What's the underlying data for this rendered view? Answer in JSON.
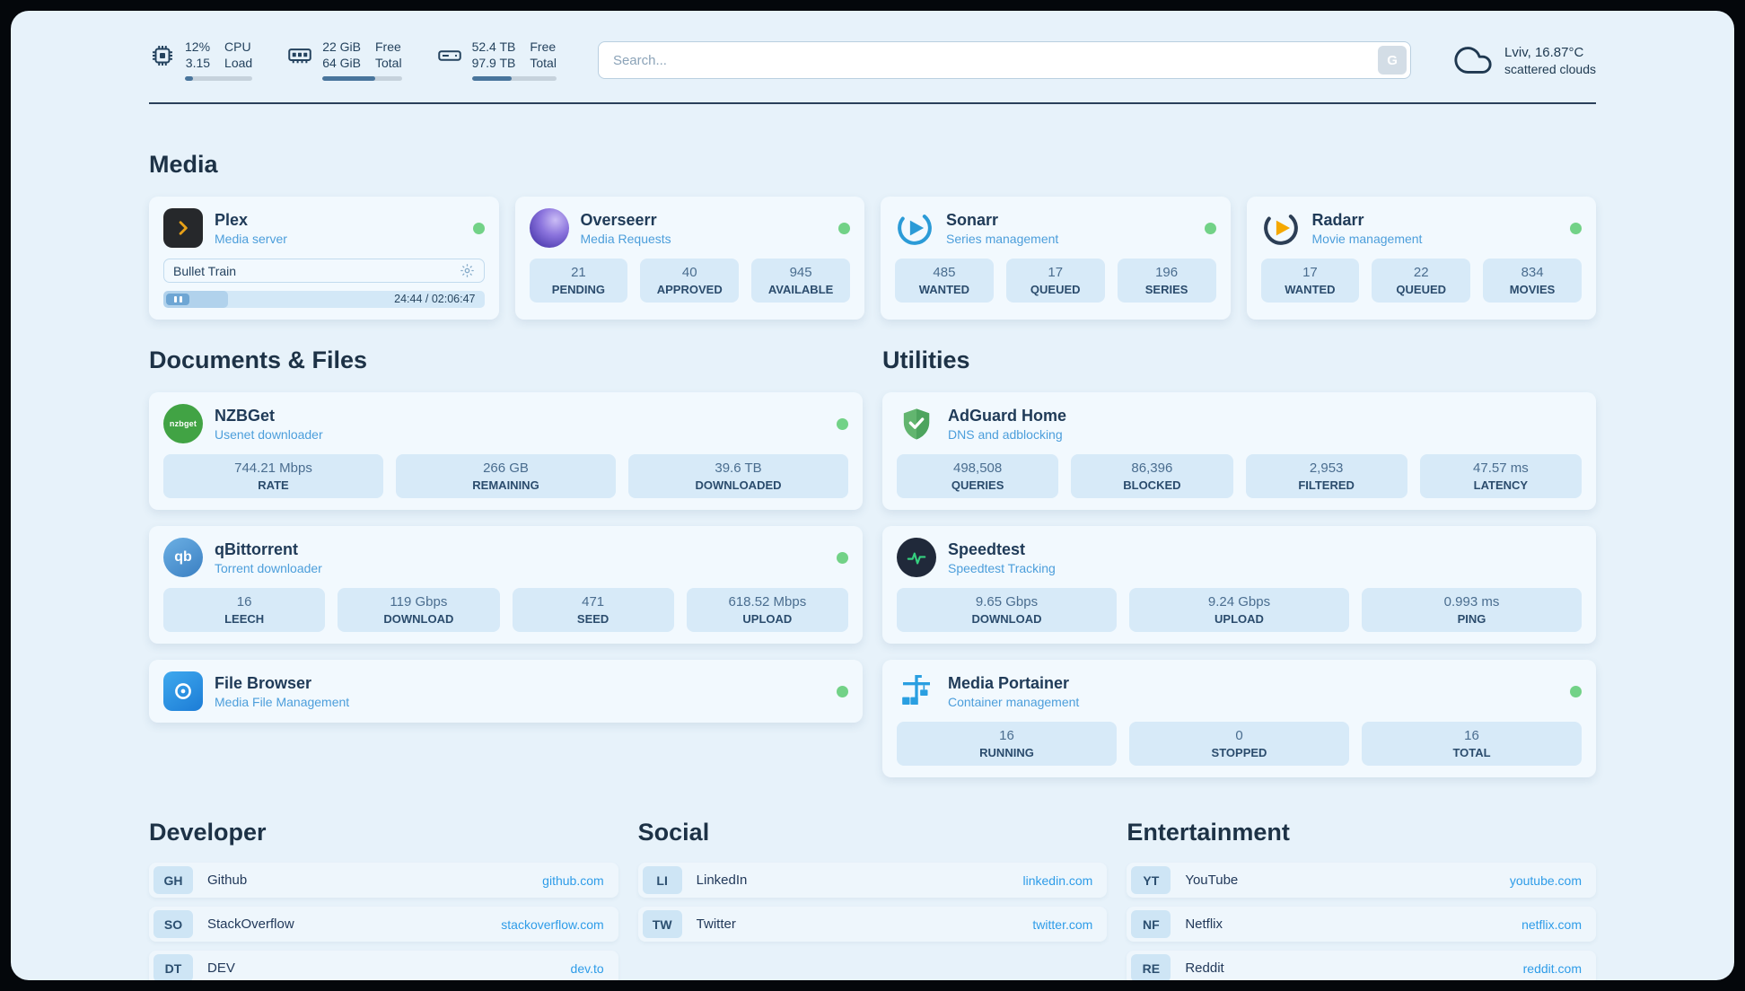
{
  "header": {
    "cpu": {
      "usage": "12%",
      "usage_label": "CPU",
      "load": "3.15",
      "load_label": "Load",
      "pct": 12
    },
    "ram": {
      "free": "22 GiB",
      "free_label": "Free",
      "total": "64 GiB",
      "total_label": "Total",
      "pct": 66
    },
    "disk": {
      "free": "52.4 TB",
      "free_label": "Free",
      "total": "97.9 TB",
      "total_label": "Total",
      "pct": 47
    },
    "search": {
      "placeholder": "Search...",
      "engine": "G"
    },
    "weather": {
      "location": "Lviv, 16.87°C",
      "condition": "scattered clouds"
    }
  },
  "sections": {
    "media": {
      "heading": "Media",
      "plex": {
        "title": "Plex",
        "subtitle": "Media server",
        "now_playing": "Bullet Train",
        "time": "24:44 / 02:06:47",
        "pct": 20
      },
      "overseerr": {
        "title": "Overseerr",
        "subtitle": "Media Requests",
        "stats": [
          {
            "value": "21",
            "label": "PENDING"
          },
          {
            "value": "40",
            "label": "APPROVED"
          },
          {
            "value": "945",
            "label": "AVAILABLE"
          }
        ]
      },
      "sonarr": {
        "title": "Sonarr",
        "subtitle": "Series management",
        "stats": [
          {
            "value": "485",
            "label": "WANTED"
          },
          {
            "value": "17",
            "label": "QUEUED"
          },
          {
            "value": "196",
            "label": "SERIES"
          }
        ]
      },
      "radarr": {
        "title": "Radarr",
        "subtitle": "Movie management",
        "stats": [
          {
            "value": "17",
            "label": "WANTED"
          },
          {
            "value": "22",
            "label": "QUEUED"
          },
          {
            "value": "834",
            "label": "MOVIES"
          }
        ]
      }
    },
    "documents": {
      "heading": "Documents & Files",
      "nzbget": {
        "title": "NZBGet",
        "subtitle": "Usenet downloader",
        "stats": [
          {
            "value": "744.21 Mbps",
            "label": "RATE"
          },
          {
            "value": "266 GB",
            "label": "REMAINING"
          },
          {
            "value": "39.6 TB",
            "label": "DOWNLOADED"
          }
        ]
      },
      "qbittorrent": {
        "title": "qBittorrent",
        "subtitle": "Torrent downloader",
        "stats": [
          {
            "value": "16",
            "label": "LEECH"
          },
          {
            "value": "119 Gbps",
            "label": "DOWNLOAD"
          },
          {
            "value": "471",
            "label": "SEED"
          },
          {
            "value": "618.52 Mbps",
            "label": "UPLOAD"
          }
        ]
      },
      "filebrowser": {
        "title": "File Browser",
        "subtitle": "Media File Management"
      }
    },
    "utilities": {
      "heading": "Utilities",
      "adguard": {
        "title": "AdGuard Home",
        "subtitle": "DNS and adblocking",
        "stats": [
          {
            "value": "498,508",
            "label": "QUERIES"
          },
          {
            "value": "86,396",
            "label": "BLOCKED"
          },
          {
            "value": "2,953",
            "label": "FILTERED"
          },
          {
            "value": "47.57 ms",
            "label": "LATENCY"
          }
        ]
      },
      "speedtest": {
        "title": "Speedtest",
        "subtitle": "Speedtest Tracking",
        "stats": [
          {
            "value": "9.65 Gbps",
            "label": "DOWNLOAD"
          },
          {
            "value": "9.24 Gbps",
            "label": "UPLOAD"
          },
          {
            "value": "0.993 ms",
            "label": "PING"
          }
        ]
      },
      "portainer": {
        "title": "Media Portainer",
        "subtitle": "Container management",
        "stats": [
          {
            "value": "16",
            "label": "RUNNING"
          },
          {
            "value": "0",
            "label": "STOPPED"
          },
          {
            "value": "16",
            "label": "TOTAL"
          }
        ]
      }
    }
  },
  "bookmarks": {
    "developer": {
      "heading": "Developer",
      "items": [
        {
          "abbr": "GH",
          "name": "Github",
          "url": "github.com"
        },
        {
          "abbr": "SO",
          "name": "StackOverflow",
          "url": "stackoverflow.com"
        },
        {
          "abbr": "DT",
          "name": "DEV",
          "url": "dev.to"
        }
      ]
    },
    "social": {
      "heading": "Social",
      "items": [
        {
          "abbr": "LI",
          "name": "LinkedIn",
          "url": "linkedin.com"
        },
        {
          "abbr": "TW",
          "name": "Twitter",
          "url": "twitter.com"
        }
      ]
    },
    "entertainment": {
      "heading": "Entertainment",
      "items": [
        {
          "abbr": "YT",
          "name": "YouTube",
          "url": "youtube.com"
        },
        {
          "abbr": "NF",
          "name": "Netflix",
          "url": "netflix.com"
        },
        {
          "abbr": "RE",
          "name": "Reddit",
          "url": "reddit.com"
        }
      ]
    }
  },
  "icons": {
    "nzbget_label": "nzbget",
    "qbittorrent_label": "qb"
  },
  "colors": {
    "accent_blue": "#2e9ce8",
    "status_online": "#72d287",
    "page_bg": "#e7f2fa",
    "card_bg": "#f2f9fe",
    "stat_bg": "#d7eaf8"
  }
}
